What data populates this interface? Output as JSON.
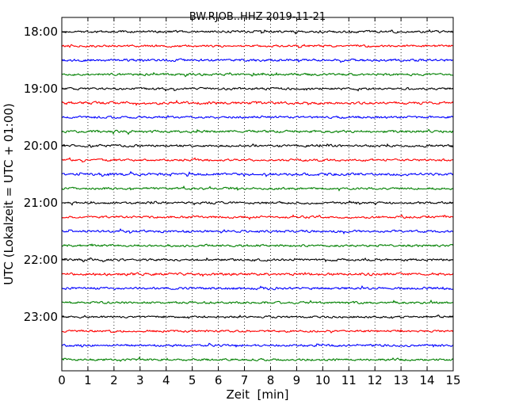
{
  "chart_data": {
    "type": "line",
    "title": "BW.RJOB..HHZ 2019-11-21",
    "xlabel": "Zeit  [min]",
    "ylabel": "UTC (Lokalzeit = UTC + 01:00)",
    "xlim": [
      0,
      15
    ],
    "x_ticks": [
      0,
      1,
      2,
      3,
      4,
      5,
      6,
      7,
      8,
      9,
      10,
      11,
      12,
      13,
      14,
      15
    ],
    "x_tick_labels": [
      "0",
      "1",
      "2",
      "3",
      "4",
      "5",
      "6",
      "7",
      "8",
      "9",
      "10",
      "11",
      "12",
      "13",
      "14",
      "15"
    ],
    "y_tick_labels": [
      "18:00",
      "19:00",
      "20:00",
      "21:00",
      "22:00",
      "23:00"
    ],
    "grid": "vertical dotted lines at each minute",
    "trace_colors": [
      "#000000",
      "#ff0000",
      "#0000ff",
      "#008000"
    ],
    "series": [
      {
        "start": "18:00",
        "color": "#000000",
        "amplitude": 2.0,
        "seed": 11
      },
      {
        "start": "18:15",
        "color": "#ff0000",
        "amplitude": 2.0,
        "seed": 23
      },
      {
        "start": "18:30",
        "color": "#0000ff",
        "amplitude": 2.2,
        "seed": 37
      },
      {
        "start": "18:45",
        "color": "#008000",
        "amplitude": 2.0,
        "seed": 41
      },
      {
        "start": "19:00",
        "color": "#000000",
        "amplitude": 2.0,
        "seed": 53
      },
      {
        "start": "19:15",
        "color": "#ff0000",
        "amplitude": 2.4,
        "seed": 67
      },
      {
        "start": "19:30",
        "color": "#0000ff",
        "amplitude": 2.0,
        "seed": 71
      },
      {
        "start": "19:45",
        "color": "#008000",
        "amplitude": 2.2,
        "seed": 83
      },
      {
        "start": "20:00",
        "color": "#000000",
        "amplitude": 2.0,
        "seed": 97
      },
      {
        "start": "20:15",
        "color": "#ff0000",
        "amplitude": 2.0,
        "seed": 101
      },
      {
        "start": "20:30",
        "color": "#0000ff",
        "amplitude": 2.2,
        "seed": 113
      },
      {
        "start": "20:45",
        "color": "#008000",
        "amplitude": 2.0,
        "seed": 127
      },
      {
        "start": "21:00",
        "color": "#000000",
        "amplitude": 2.0,
        "seed": 131
      },
      {
        "start": "21:15",
        "color": "#ff0000",
        "amplitude": 2.0,
        "seed": 149
      },
      {
        "start": "21:30",
        "color": "#0000ff",
        "amplitude": 2.0,
        "seed": 151
      },
      {
        "start": "21:45",
        "color": "#008000",
        "amplitude": 2.0,
        "seed": 163
      },
      {
        "start": "22:00",
        "color": "#000000",
        "amplitude": 2.0,
        "seed": 173
      },
      {
        "start": "22:15",
        "color": "#ff0000",
        "amplitude": 2.4,
        "seed": 181
      },
      {
        "start": "22:30",
        "color": "#0000ff",
        "amplitude": 2.2,
        "seed": 191
      },
      {
        "start": "22:45",
        "color": "#008000",
        "amplitude": 2.0,
        "seed": 197
      },
      {
        "start": "23:00",
        "color": "#000000",
        "amplitude": 1.8,
        "seed": 211
      },
      {
        "start": "23:15",
        "color": "#ff0000",
        "amplitude": 2.0,
        "seed": 223
      },
      {
        "start": "23:30",
        "color": "#0000ff",
        "amplitude": 2.0,
        "seed": 227
      },
      {
        "start": "23:45",
        "color": "#008000",
        "amplitude": 2.0,
        "seed": 233
      }
    ]
  }
}
